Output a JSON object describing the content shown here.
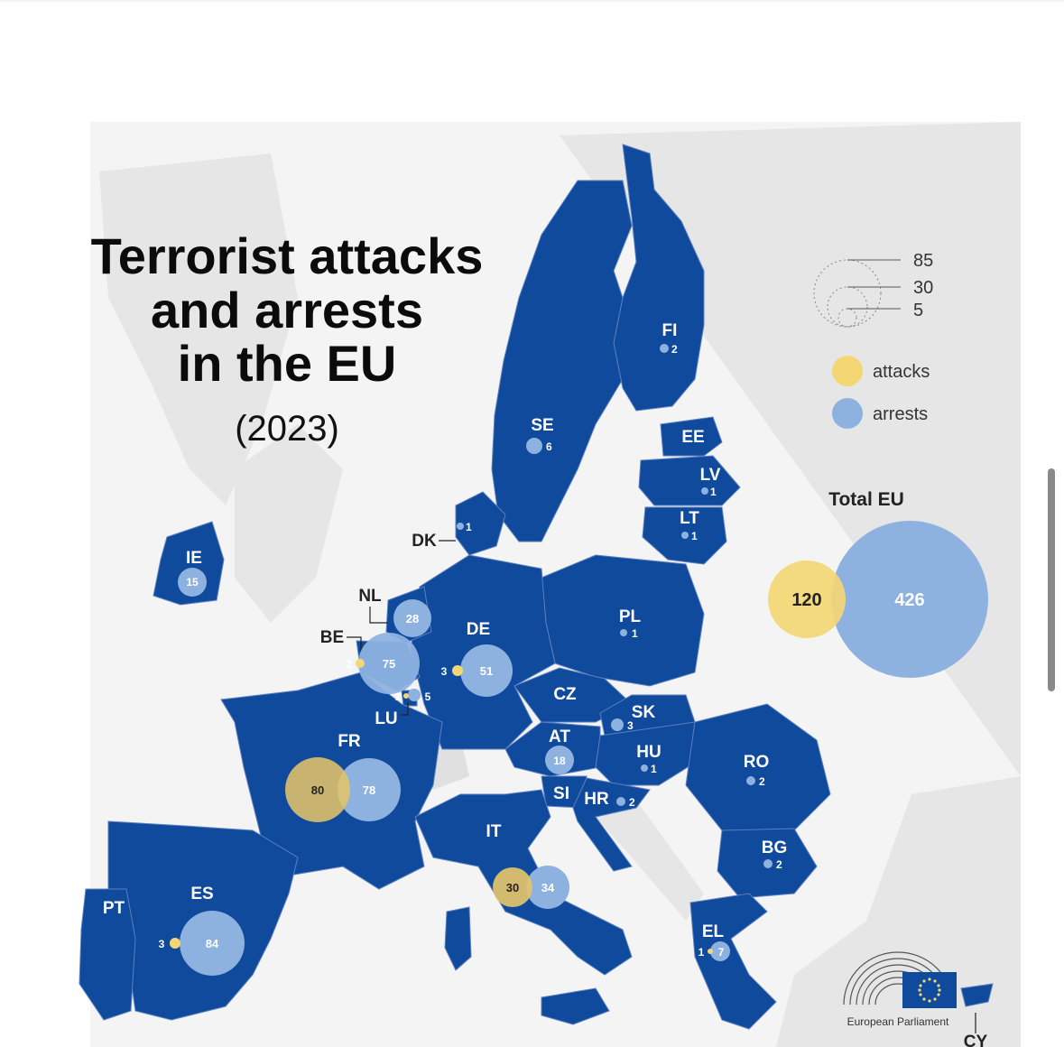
{
  "title_lines": [
    "Terrorist attacks",
    "and arrests",
    "in the EU"
  ],
  "year": "(2023)",
  "legend": {
    "size_values": [
      "85",
      "30",
      "5"
    ],
    "attacks_label": "attacks",
    "arrests_label": "arrests"
  },
  "total": {
    "label": "Total EU",
    "attacks": "120",
    "arrests": "426"
  },
  "colors": {
    "eu_blue": "#0f4a9c",
    "land_grey": "#e6e6e6",
    "attacks": "#f3d774",
    "arrests": "#8db2e0",
    "ink": "#111111"
  },
  "countries": {
    "fi": {
      "code": "FI",
      "arrests": "2"
    },
    "se": {
      "code": "SE",
      "arrests": "6"
    },
    "ee": {
      "code": "EE"
    },
    "lv": {
      "code": "LV",
      "arrests": "1"
    },
    "lt": {
      "code": "LT",
      "arrests": "1"
    },
    "dk": {
      "code": "DK",
      "arrests": "1"
    },
    "ie": {
      "code": "IE",
      "arrests": "15"
    },
    "nl": {
      "code": "NL",
      "arrests": "28"
    },
    "be": {
      "code": "BE",
      "attacks": "2",
      "arrests": "75"
    },
    "lu": {
      "code": "LU",
      "attacks": "1",
      "arrests": "5"
    },
    "de": {
      "code": "DE",
      "attacks": "3",
      "arrests": "51"
    },
    "pl": {
      "code": "PL",
      "arrests": "1"
    },
    "cz": {
      "code": "CZ"
    },
    "sk": {
      "code": "SK",
      "arrests": "3"
    },
    "at": {
      "code": "AT",
      "arrests": "18"
    },
    "hu": {
      "code": "HU",
      "arrests": "1"
    },
    "ro": {
      "code": "RO",
      "arrests": "2"
    },
    "si": {
      "code": "SI"
    },
    "hr": {
      "code": "HR",
      "arrests": "2"
    },
    "fr": {
      "code": "FR",
      "attacks": "80",
      "arrests": "78"
    },
    "it": {
      "code": "IT",
      "attacks": "30",
      "arrests": "34"
    },
    "es": {
      "code": "ES",
      "attacks": "3",
      "arrests": "84"
    },
    "pt": {
      "code": "PT"
    },
    "bg": {
      "code": "BG",
      "arrests": "2"
    },
    "el": {
      "code": "EL",
      "attacks": "1",
      "arrests": "7"
    },
    "cy": {
      "code": "CY"
    }
  },
  "logo_text": "European Parliament"
}
